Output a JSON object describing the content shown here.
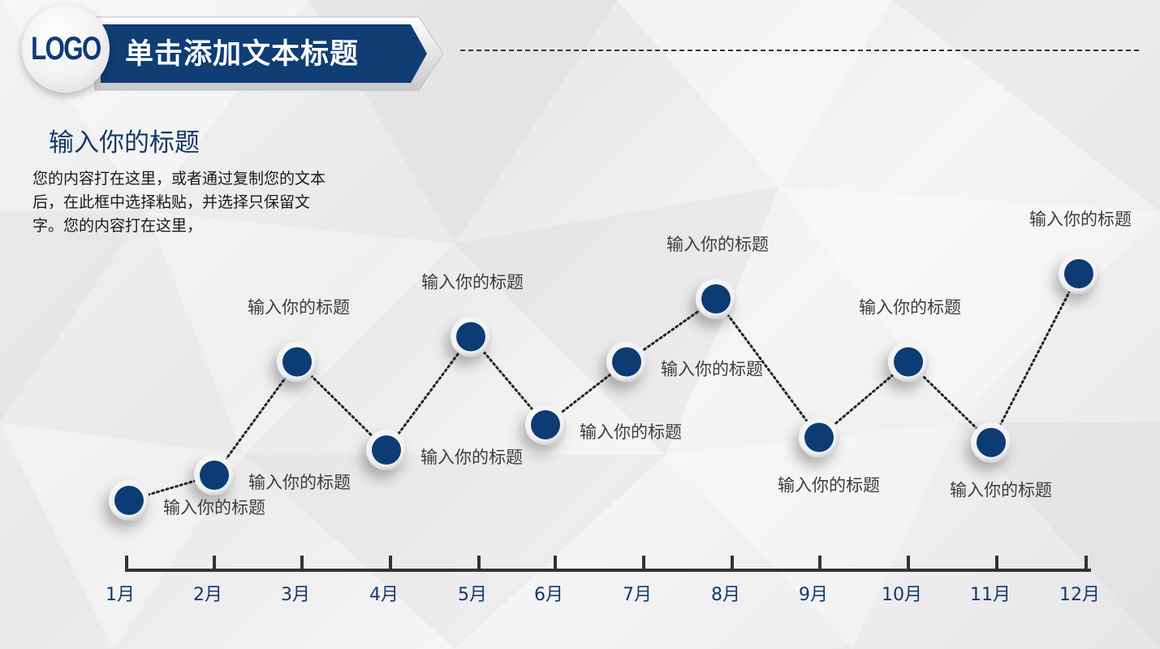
{
  "header": {
    "logo_text": "LOGO",
    "title": "单击添加文本标题"
  },
  "content": {
    "subtitle": "输入你的标题",
    "body": "您的内容打在这里，或者通过复制您的文本后，在此框中选择粘贴，并选择只保留文字。您的内容打在这里，"
  },
  "colors": {
    "accent": "#0d3c74",
    "title_bar": "#0f3d74",
    "text_dark": "#1a1a1a"
  },
  "chart_data": {
    "type": "line",
    "categories": [
      "1月",
      "2月",
      "3月",
      "4月",
      "5月",
      "6月",
      "7月",
      "8月",
      "9月",
      "10月",
      "11月",
      "12月"
    ],
    "values": [
      2,
      3,
      7.5,
      4,
      8.5,
      5,
      7.5,
      10,
      4.5,
      7.5,
      4.3,
      11
    ],
    "point_labels": [
      "输入你的标题",
      "输入你的标题",
      "输入你的标题",
      "输入你的标题",
      "输入你的标题",
      "输入你的标题",
      "输入你的标题",
      "输入你的标题",
      "输入你的标题",
      "输入你的标题",
      "输入你的标题",
      "输入你的标题"
    ],
    "label_placement": [
      "below-right",
      "below-right",
      "above",
      "below-right",
      "above",
      "below-right",
      "below-right",
      "above",
      "below",
      "above",
      "below",
      "above"
    ],
    "ylim": [
      0,
      12
    ],
    "title": "",
    "xlabel": "",
    "ylabel": ""
  }
}
